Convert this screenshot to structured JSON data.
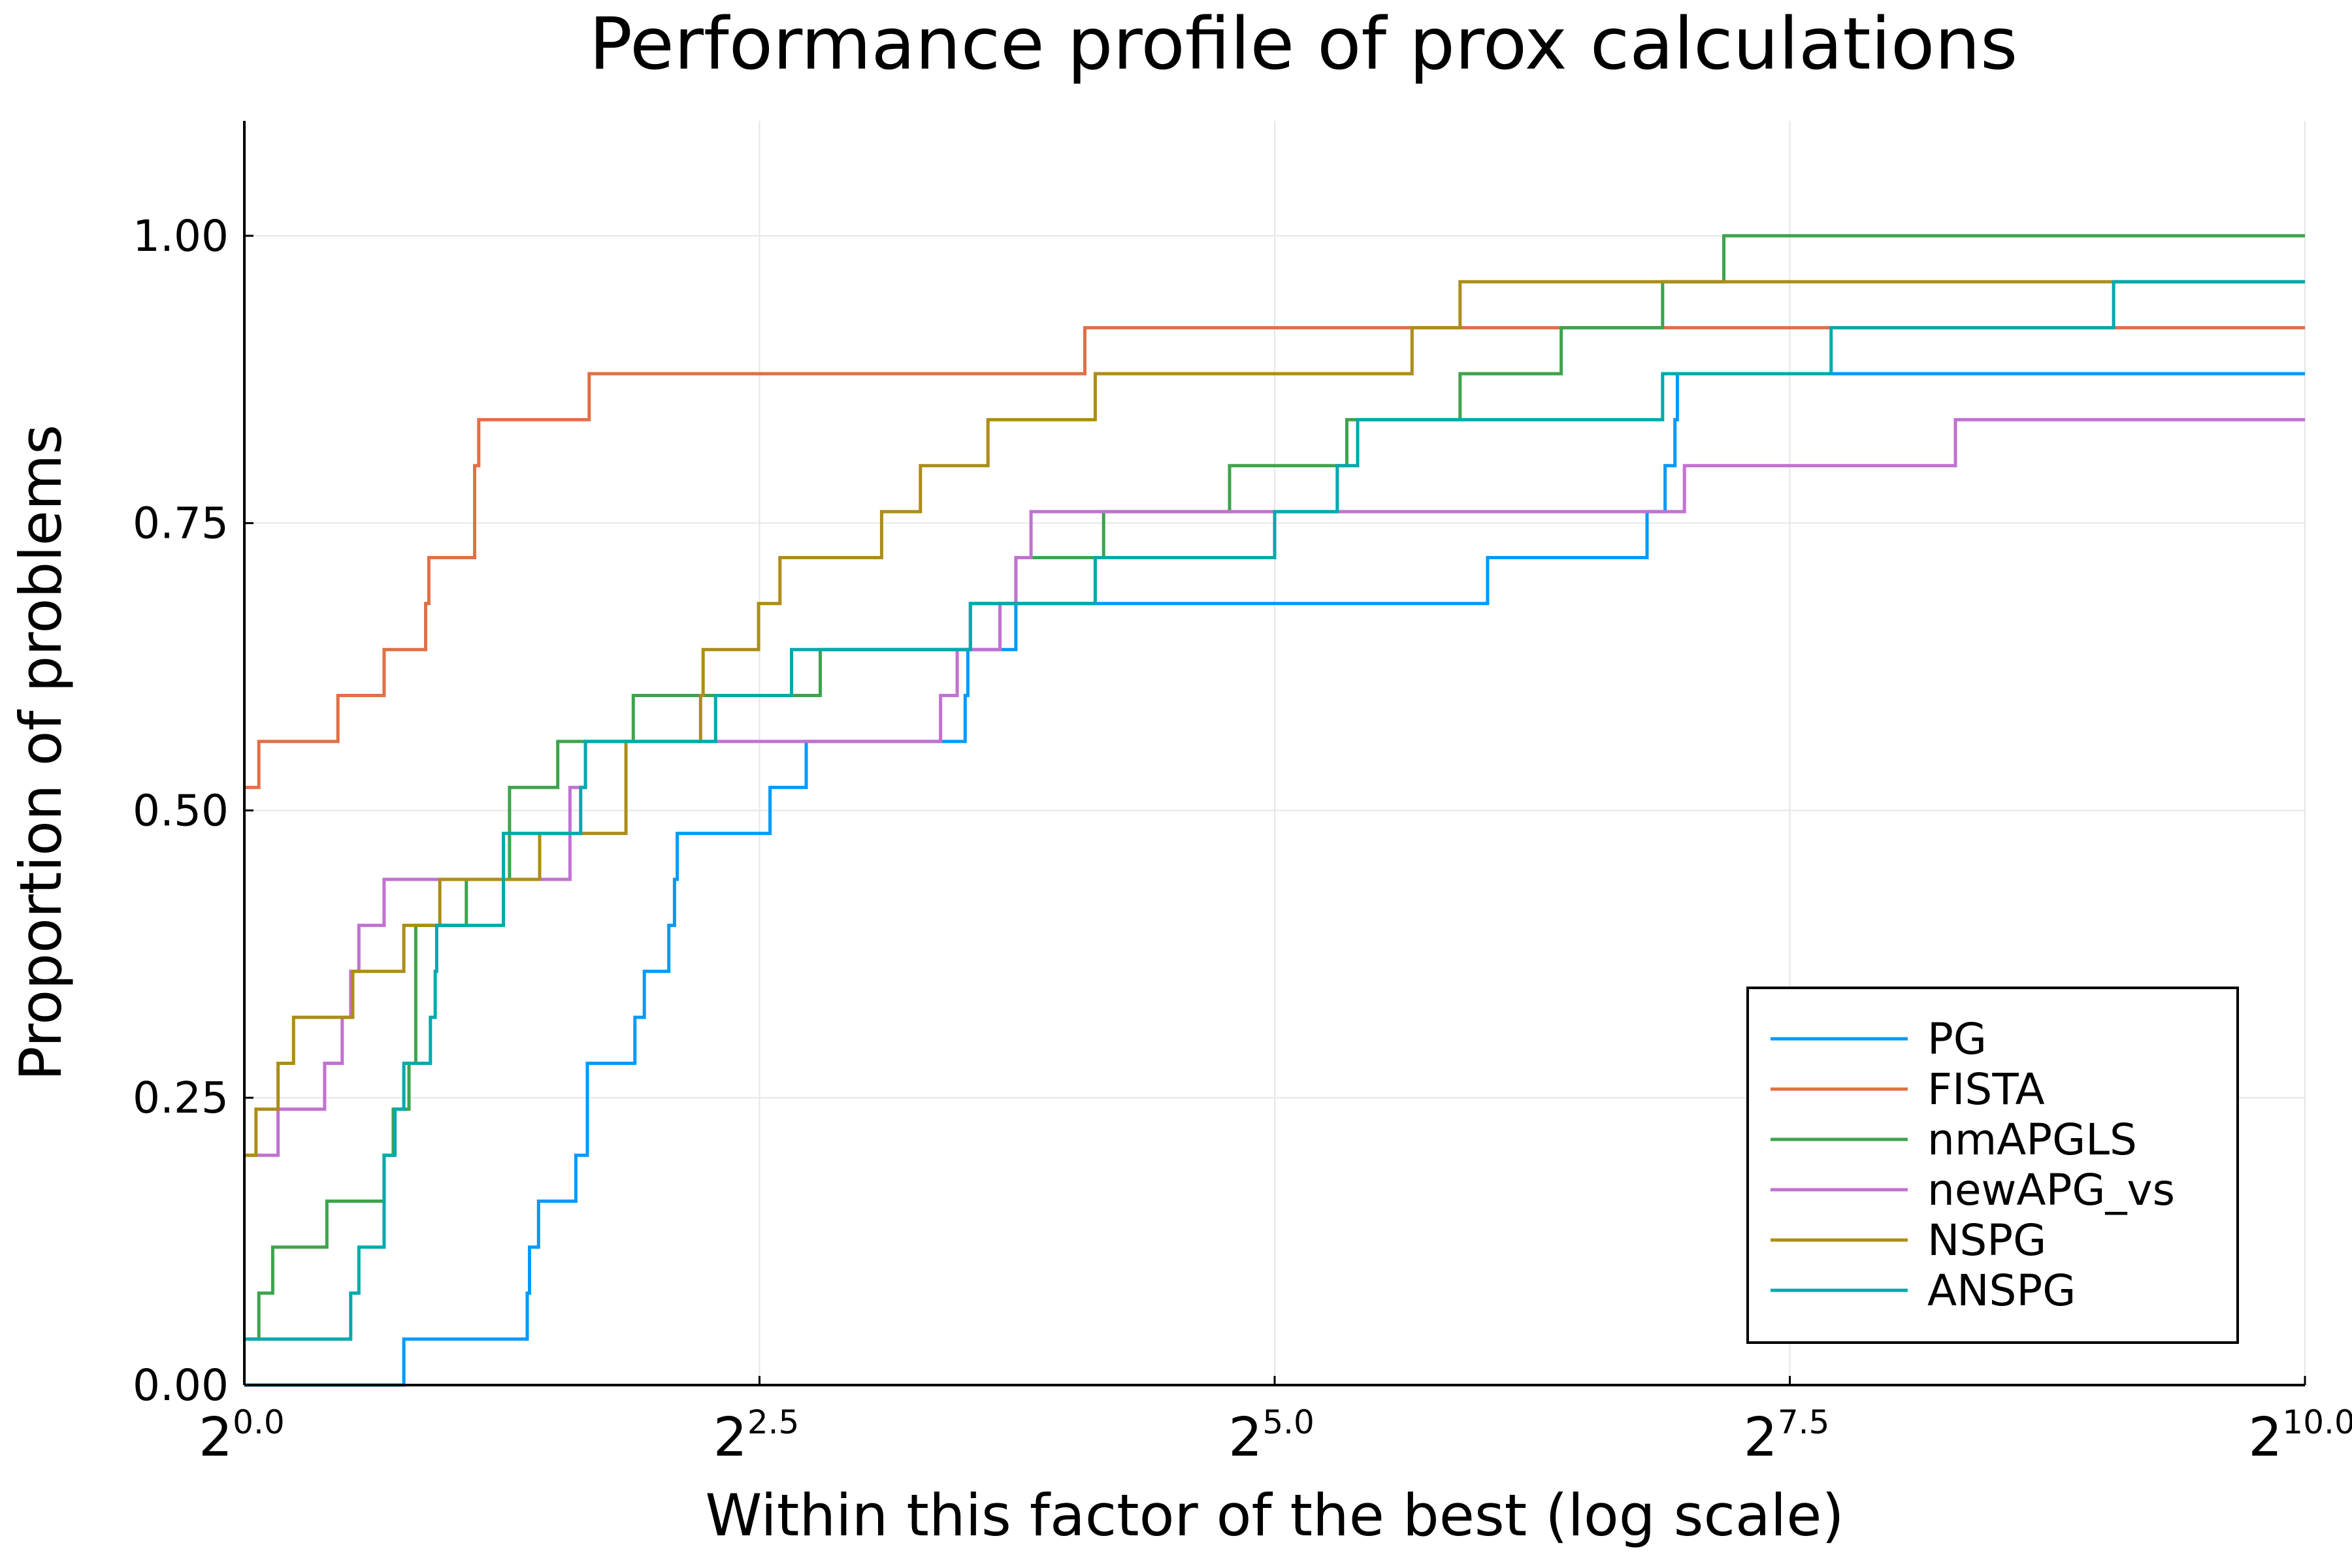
{
  "chart_data": {
    "type": "line",
    "step": true,
    "title": "Performance profile of prox calculations",
    "xlabel": "Within this factor of the best (log scale)",
    "ylabel": "Proportion of problems",
    "xscale": "log2",
    "xlim": [
      1,
      1024
    ],
    "ylim": [
      0,
      1.1
    ],
    "x_ticks": [
      {
        "base": "2",
        "exp": "0.0",
        "value": 1
      },
      {
        "base": "2",
        "exp": "2.5",
        "value": 5.657
      },
      {
        "base": "2",
        "exp": "5.0",
        "value": 32
      },
      {
        "base": "2",
        "exp": "7.5",
        "value": 181.02
      },
      {
        "base": "2",
        "exp": "10.0",
        "value": 1024
      }
    ],
    "y_ticks": [
      {
        "label": "0.00",
        "value": 0
      },
      {
        "label": "0.25",
        "value": 0.25
      },
      {
        "label": "0.50",
        "value": 0.5
      },
      {
        "label": "0.75",
        "value": 0.75
      },
      {
        "label": "1.00",
        "value": 1.0
      }
    ],
    "grid": true,
    "legend_position": "bottom-right",
    "series": [
      {
        "name": "PG",
        "color": "#009AFA",
        "points": [
          [
            1,
            0
          ],
          [
            1.71,
            0
          ],
          [
            1.71,
            0.04
          ],
          [
            2.59,
            0.04
          ],
          [
            2.59,
            0.08
          ],
          [
            2.61,
            0.08
          ],
          [
            2.61,
            0.12
          ],
          [
            2.69,
            0.12
          ],
          [
            2.69,
            0.16
          ],
          [
            3.05,
            0.16
          ],
          [
            3.05,
            0.2
          ],
          [
            3.17,
            0.2
          ],
          [
            3.17,
            0.28
          ],
          [
            3.72,
            0.28
          ],
          [
            3.72,
            0.32
          ],
          [
            3.84,
            0.32
          ],
          [
            3.84,
            0.36
          ],
          [
            4.17,
            0.36
          ],
          [
            4.17,
            0.4
          ],
          [
            4.25,
            0.4
          ],
          [
            4.25,
            0.44
          ],
          [
            4.29,
            0.44
          ],
          [
            4.29,
            0.48
          ],
          [
            5.86,
            0.48
          ],
          [
            5.86,
            0.52
          ],
          [
            6.62,
            0.52
          ],
          [
            6.62,
            0.56
          ],
          [
            11.3,
            0.56
          ],
          [
            11.3,
            0.6
          ],
          [
            11.4,
            0.6
          ],
          [
            11.4,
            0.64
          ],
          [
            13.4,
            0.64
          ],
          [
            13.4,
            0.68
          ],
          [
            65.5,
            0.68
          ],
          [
            65.5,
            0.72
          ],
          [
            112,
            0.72
          ],
          [
            112,
            0.76
          ],
          [
            119,
            0.76
          ],
          [
            119,
            0.8
          ],
          [
            123,
            0.8
          ],
          [
            123,
            0.84
          ],
          [
            124,
            0.84
          ],
          [
            124,
            0.88
          ],
          [
            1024,
            0.88
          ]
        ]
      },
      {
        "name": "FISTA",
        "color": "#E26F46",
        "points": [
          [
            1,
            0.52
          ],
          [
            1.05,
            0.52
          ],
          [
            1.05,
            0.56
          ],
          [
            1.37,
            0.56
          ],
          [
            1.37,
            0.6
          ],
          [
            1.6,
            0.6
          ],
          [
            1.6,
            0.64
          ],
          [
            1.84,
            0.64
          ],
          [
            1.84,
            0.68
          ],
          [
            1.86,
            0.68
          ],
          [
            1.86,
            0.72
          ],
          [
            2.17,
            0.72
          ],
          [
            2.17,
            0.8
          ],
          [
            2.2,
            0.8
          ],
          [
            2.2,
            0.84
          ],
          [
            3.19,
            0.84
          ],
          [
            3.19,
            0.88
          ],
          [
            16.9,
            0.88
          ],
          [
            16.9,
            0.92
          ],
          [
            1024,
            0.92
          ]
        ]
      },
      {
        "name": "nmAPGLS",
        "color": "#3DA44D",
        "points": [
          [
            1,
            0.04
          ],
          [
            1.05,
            0.04
          ],
          [
            1.05,
            0.08
          ],
          [
            1.1,
            0.08
          ],
          [
            1.1,
            0.12
          ],
          [
            1.32,
            0.12
          ],
          [
            1.32,
            0.16
          ],
          [
            1.6,
            0.16
          ],
          [
            1.6,
            0.2
          ],
          [
            1.65,
            0.2
          ],
          [
            1.65,
            0.24
          ],
          [
            1.74,
            0.24
          ],
          [
            1.74,
            0.28
          ],
          [
            1.78,
            0.28
          ],
          [
            1.78,
            0.4
          ],
          [
            2.11,
            0.4
          ],
          [
            2.11,
            0.44
          ],
          [
            2.44,
            0.44
          ],
          [
            2.44,
            0.52
          ],
          [
            2.87,
            0.52
          ],
          [
            2.87,
            0.56
          ],
          [
            3.7,
            0.56
          ],
          [
            3.7,
            0.6
          ],
          [
            6.94,
            0.6
          ],
          [
            6.94,
            0.64
          ],
          [
            11.5,
            0.64
          ],
          [
            11.5,
            0.68
          ],
          [
            13.4,
            0.68
          ],
          [
            13.4,
            0.72
          ],
          [
            18,
            0.72
          ],
          [
            18,
            0.76
          ],
          [
            27.5,
            0.76
          ],
          [
            27.5,
            0.8
          ],
          [
            40.8,
            0.8
          ],
          [
            40.8,
            0.84
          ],
          [
            59.7,
            0.84
          ],
          [
            59.7,
            0.88
          ],
          [
            83.9,
            0.88
          ],
          [
            83.9,
            0.92
          ],
          [
            118,
            0.92
          ],
          [
            118,
            0.96
          ],
          [
            145,
            0.96
          ],
          [
            145,
            1.0
          ],
          [
            1024,
            1.0
          ]
        ]
      },
      {
        "name": "newAPG_vs",
        "color": "#C271D2",
        "points": [
          [
            1,
            0.2
          ],
          [
            1.12,
            0.2
          ],
          [
            1.12,
            0.24
          ],
          [
            1.31,
            0.24
          ],
          [
            1.31,
            0.28
          ],
          [
            1.39,
            0.28
          ],
          [
            1.39,
            0.32
          ],
          [
            1.43,
            0.32
          ],
          [
            1.43,
            0.36
          ],
          [
            1.47,
            0.36
          ],
          [
            1.47,
            0.4
          ],
          [
            1.6,
            0.4
          ],
          [
            1.6,
            0.44
          ],
          [
            2.99,
            0.44
          ],
          [
            2.99,
            0.52
          ],
          [
            3.15,
            0.52
          ],
          [
            3.15,
            0.56
          ],
          [
            10.4,
            0.56
          ],
          [
            10.4,
            0.6
          ],
          [
            11,
            0.6
          ],
          [
            11,
            0.64
          ],
          [
            12.7,
            0.64
          ],
          [
            12.7,
            0.68
          ],
          [
            13.4,
            0.68
          ],
          [
            13.4,
            0.72
          ],
          [
            14.1,
            0.72
          ],
          [
            14.1,
            0.76
          ],
          [
            127,
            0.76
          ],
          [
            127,
            0.8
          ],
          [
            316,
            0.8
          ],
          [
            316,
            0.84
          ],
          [
            1024,
            0.84
          ]
        ]
      },
      {
        "name": "NSPG",
        "color": "#AC8D18",
        "points": [
          [
            1,
            0.2
          ],
          [
            1.04,
            0.2
          ],
          [
            1.04,
            0.24
          ],
          [
            1.12,
            0.24
          ],
          [
            1.12,
            0.28
          ],
          [
            1.18,
            0.28
          ],
          [
            1.18,
            0.32
          ],
          [
            1.44,
            0.32
          ],
          [
            1.44,
            0.36
          ],
          [
            1.71,
            0.36
          ],
          [
            1.71,
            0.4
          ],
          [
            1.93,
            0.4
          ],
          [
            1.93,
            0.44
          ],
          [
            2.7,
            0.44
          ],
          [
            2.7,
            0.48
          ],
          [
            3.61,
            0.48
          ],
          [
            3.61,
            0.56
          ],
          [
            4.64,
            0.56
          ],
          [
            4.64,
            0.6
          ],
          [
            4.68,
            0.6
          ],
          [
            4.68,
            0.64
          ],
          [
            5.64,
            0.64
          ],
          [
            5.64,
            0.68
          ],
          [
            6.06,
            0.68
          ],
          [
            6.06,
            0.72
          ],
          [
            8.53,
            0.72
          ],
          [
            8.53,
            0.76
          ],
          [
            9.72,
            0.76
          ],
          [
            9.72,
            0.8
          ],
          [
            12.2,
            0.8
          ],
          [
            12.2,
            0.84
          ],
          [
            17.5,
            0.84
          ],
          [
            17.5,
            0.88
          ],
          [
            50.8,
            0.88
          ],
          [
            50.8,
            0.92
          ],
          [
            59.7,
            0.92
          ],
          [
            59.7,
            0.96
          ],
          [
            1024,
            0.96
          ]
        ]
      },
      {
        "name": "ANSPG",
        "color": "#00A9AD",
        "points": [
          [
            1,
            0.04
          ],
          [
            1.43,
            0.04
          ],
          [
            1.43,
            0.08
          ],
          [
            1.47,
            0.08
          ],
          [
            1.47,
            0.12
          ],
          [
            1.6,
            0.12
          ],
          [
            1.6,
            0.2
          ],
          [
            1.66,
            0.2
          ],
          [
            1.66,
            0.24
          ],
          [
            1.71,
            0.24
          ],
          [
            1.71,
            0.28
          ],
          [
            1.87,
            0.28
          ],
          [
            1.87,
            0.32
          ],
          [
            1.9,
            0.32
          ],
          [
            1.9,
            0.36
          ],
          [
            1.91,
            0.36
          ],
          [
            1.91,
            0.4
          ],
          [
            2.39,
            0.4
          ],
          [
            2.39,
            0.48
          ],
          [
            3.1,
            0.48
          ],
          [
            3.1,
            0.52
          ],
          [
            3.15,
            0.52
          ],
          [
            3.15,
            0.56
          ],
          [
            4.88,
            0.56
          ],
          [
            4.88,
            0.6
          ],
          [
            6.3,
            0.6
          ],
          [
            6.3,
            0.64
          ],
          [
            11.5,
            0.64
          ],
          [
            11.5,
            0.68
          ],
          [
            17.5,
            0.68
          ],
          [
            17.5,
            0.72
          ],
          [
            32,
            0.72
          ],
          [
            32,
            0.76
          ],
          [
            39.5,
            0.76
          ],
          [
            39.5,
            0.8
          ],
          [
            42.3,
            0.8
          ],
          [
            42.3,
            0.84
          ],
          [
            118,
            0.84
          ],
          [
            118,
            0.88
          ],
          [
            208,
            0.88
          ],
          [
            208,
            0.92
          ],
          [
            538,
            0.92
          ],
          [
            538,
            0.96
          ],
          [
            1024,
            0.96
          ]
        ]
      }
    ]
  }
}
